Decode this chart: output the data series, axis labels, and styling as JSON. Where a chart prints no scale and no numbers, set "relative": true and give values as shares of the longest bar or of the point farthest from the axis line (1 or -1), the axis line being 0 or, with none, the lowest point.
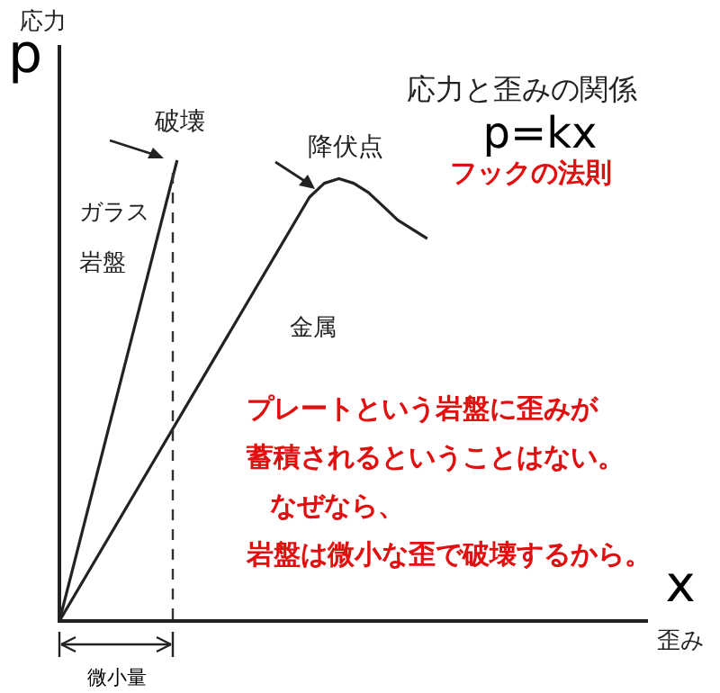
{
  "chart_data": {
    "type": "line",
    "relative": true,
    "title": "応力と歪みの関係",
    "subtitle": "p=kx",
    "xlabel": "x",
    "ylabel": "p",
    "tick_labels": false,
    "legend": false,
    "marker": "none",
    "line_style": "solid",
    "categories": [
      null,
      null,
      null,
      null,
      null,
      null,
      null,
      null,
      null,
      null,
      null,
      null,
      null,
      null,
      null,
      null,
      null,
      null,
      null,
      null,
      null,
      null,
      null,
      null,
      null,
      null,
      null,
      null,
      null,
      null,
      null,
      null,
      null,
      null,
      null,
      null,
      null,
      null,
      null,
      null,
      null
    ],
    "series": [
      {
        "name": "ガラス岩盤",
        "color": "#222222",
        "values": [
          0,
          null,
          null,
          null,
          null,
          null,
          null,
          null,
          1,
          null,
          null,
          null,
          null,
          null,
          null,
          null,
          null,
          null,
          null,
          null,
          null,
          null,
          null,
          null,
          null,
          null,
          null,
          null,
          null,
          null,
          null,
          null,
          null,
          null,
          null,
          null,
          null,
          null,
          null,
          null,
          null
        ]
      },
      {
        "name": "金属",
        "color": "#222222",
        "values": [
          0,
          null,
          null,
          null,
          null,
          null,
          null,
          null,
          null,
          null,
          null,
          null,
          null,
          null,
          null,
          null,
          null,
          0.92,
          0.95,
          0.96,
          0.95,
          0.93,
          0.9,
          0.87,
          0.85,
          0.83,
          null,
          null,
          null,
          null,
          null,
          null,
          null,
          null,
          null,
          null,
          null,
          null,
          null,
          null,
          null
        ]
      }
    ],
    "annotations": [
      "応力",
      "歪み",
      "破壊",
      "降伏点",
      "フックの法則",
      "プレートという岩盤に歪みが",
      "蓄積されるということはない。",
      "なぜなら、",
      "岩盤は微小な歪で破壊するから。",
      "微小量"
    ]
  }
}
